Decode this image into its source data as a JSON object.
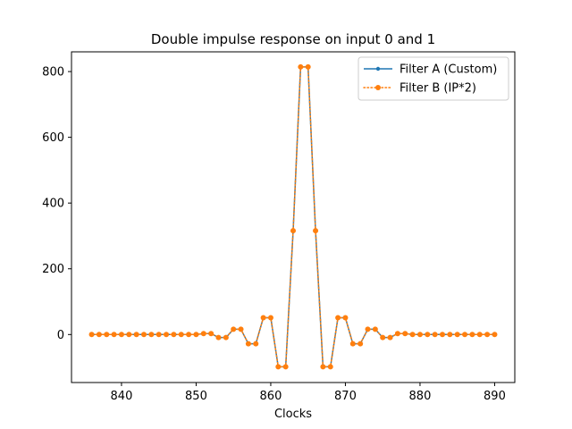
{
  "chart_data": {
    "type": "line",
    "title": "Double impulse response on input 0 and 1",
    "xlabel": "Clocks",
    "ylabel": "",
    "xlim": [
      833.3,
      892.7
    ],
    "ylim": [
      -146,
      860
    ],
    "x_ticks": [
      840,
      850,
      860,
      870,
      880,
      890
    ],
    "y_ticks": [
      0,
      200,
      400,
      600,
      800
    ],
    "legend_position": "upper right",
    "grid": false,
    "x": [
      836,
      837,
      838,
      839,
      840,
      841,
      842,
      843,
      844,
      845,
      846,
      847,
      848,
      849,
      850,
      851,
      852,
      853,
      854,
      855,
      856,
      857,
      858,
      859,
      860,
      861,
      862,
      863,
      864,
      865,
      866,
      867,
      868,
      869,
      870,
      871,
      872,
      873,
      874,
      875,
      876,
      877,
      878,
      879,
      880,
      881,
      882,
      883,
      884,
      885,
      886,
      887,
      888,
      889,
      890
    ],
    "series": [
      {
        "name": "Filter A (Custom)",
        "color": "#1f77b4",
        "linestyle": "solid",
        "marker": "point",
        "values": [
          0,
          0,
          0,
          0,
          0,
          0,
          0,
          0,
          0,
          0,
          0,
          0,
          0,
          0,
          0,
          3,
          3,
          -9,
          -9,
          16,
          16,
          -28,
          -28,
          51,
          51,
          -98,
          -98,
          316,
          814,
          814,
          316,
          -98,
          -98,
          51,
          51,
          -28,
          -28,
          16,
          16,
          -9,
          -9,
          3,
          3,
          0,
          0,
          0,
          0,
          0,
          0,
          0,
          0,
          0,
          0,
          0,
          0
        ]
      },
      {
        "name": "Filter B (IP*2)",
        "color": "#ff7f0e",
        "linestyle": "dotted",
        "marker": "circle",
        "values": [
          0,
          0,
          0,
          0,
          0,
          0,
          0,
          0,
          0,
          0,
          0,
          0,
          0,
          0,
          0,
          3,
          3,
          -9,
          -9,
          16,
          16,
          -28,
          -28,
          51,
          51,
          -98,
          -98,
          316,
          814,
          814,
          316,
          -98,
          -98,
          51,
          51,
          -28,
          -28,
          16,
          16,
          -9,
          -9,
          3,
          3,
          0,
          0,
          0,
          0,
          0,
          0,
          0,
          0,
          0,
          0,
          0,
          0
        ]
      }
    ]
  }
}
